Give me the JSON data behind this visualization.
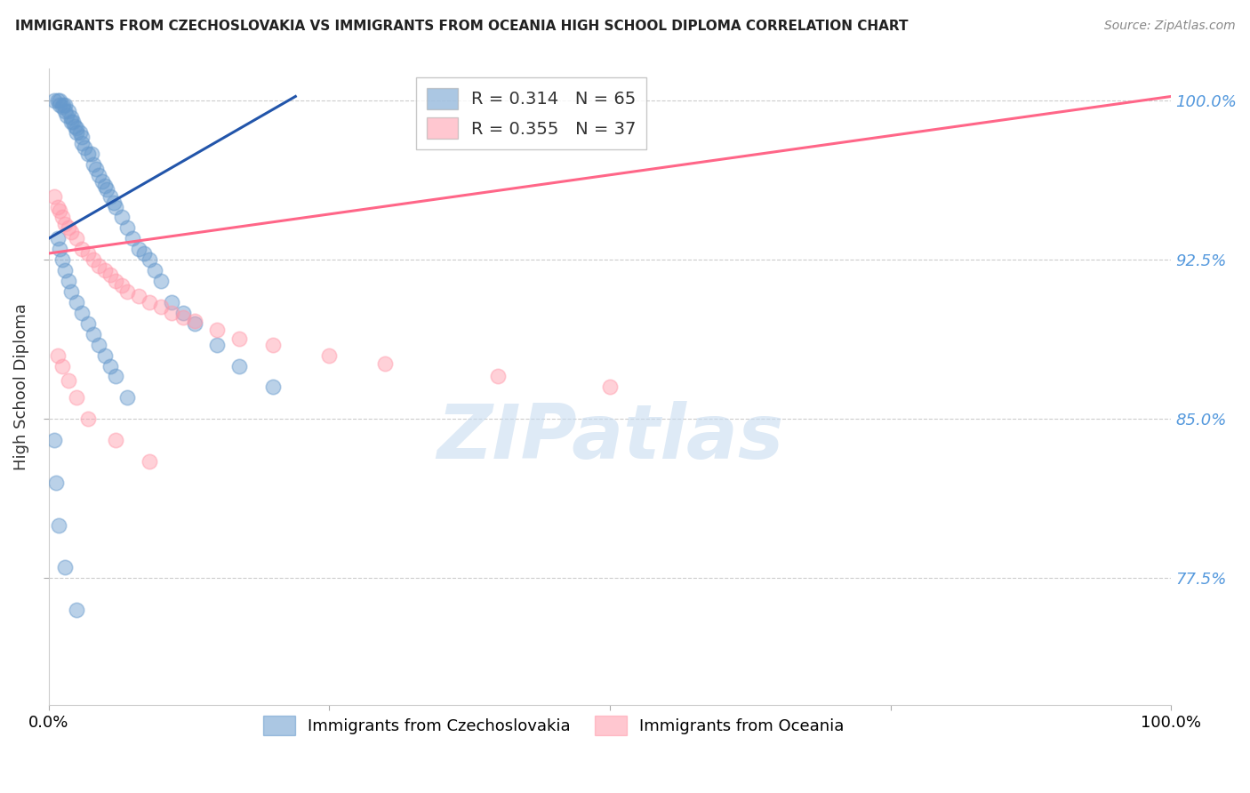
{
  "title": "IMMIGRANTS FROM CZECHOSLOVAKIA VS IMMIGRANTS FROM OCEANIA HIGH SCHOOL DIPLOMA CORRELATION CHART",
  "source": "Source: ZipAtlas.com",
  "ylabel": "High School Diploma",
  "xlim": [
    0.0,
    1.0
  ],
  "ylim": [
    0.715,
    1.015
  ],
  "yticks": [
    0.775,
    0.85,
    0.925,
    1.0
  ],
  "ytick_labels": [
    "77.5%",
    "85.0%",
    "92.5%",
    "100.0%"
  ],
  "xticks": [
    0.0,
    0.25,
    0.5,
    0.75,
    1.0
  ],
  "xtick_labels": [
    "0.0%",
    "",
    "",
    "",
    "100.0%"
  ],
  "legend_entry1": "R = 0.314   N = 65",
  "legend_entry2": "R = 0.355   N = 37",
  "blue_color": "#6699CC",
  "pink_color": "#FF99AA",
  "blue_line_color": "#2255AA",
  "pink_line_color": "#FF6688",
  "blue_x": [
    0.005,
    0.008,
    0.01,
    0.01,
    0.012,
    0.013,
    0.015,
    0.015,
    0.016,
    0.018,
    0.02,
    0.02,
    0.022,
    0.023,
    0.025,
    0.025,
    0.028,
    0.03,
    0.03,
    0.032,
    0.035,
    0.038,
    0.04,
    0.042,
    0.045,
    0.048,
    0.05,
    0.052,
    0.055,
    0.058,
    0.06,
    0.065,
    0.07,
    0.075,
    0.08,
    0.085,
    0.09,
    0.095,
    0.1,
    0.11,
    0.12,
    0.13,
    0.15,
    0.17,
    0.2,
    0.008,
    0.01,
    0.012,
    0.015,
    0.018,
    0.02,
    0.025,
    0.03,
    0.035,
    0.04,
    0.045,
    0.05,
    0.055,
    0.06,
    0.07,
    0.005,
    0.007,
    0.009,
    0.015,
    0.025
  ],
  "blue_y": [
    1.0,
    1.0,
    1.0,
    0.998,
    0.997,
    0.998,
    0.995,
    0.998,
    0.993,
    0.995,
    0.99,
    0.992,
    0.99,
    0.988,
    0.985,
    0.987,
    0.985,
    0.983,
    0.98,
    0.978,
    0.975,
    0.975,
    0.97,
    0.968,
    0.965,
    0.962,
    0.96,
    0.958,
    0.955,
    0.952,
    0.95,
    0.945,
    0.94,
    0.935,
    0.93,
    0.928,
    0.925,
    0.92,
    0.915,
    0.905,
    0.9,
    0.895,
    0.885,
    0.875,
    0.865,
    0.935,
    0.93,
    0.925,
    0.92,
    0.915,
    0.91,
    0.905,
    0.9,
    0.895,
    0.89,
    0.885,
    0.88,
    0.875,
    0.87,
    0.86,
    0.84,
    0.82,
    0.8,
    0.78,
    0.76
  ],
  "pink_x": [
    0.005,
    0.008,
    0.01,
    0.012,
    0.015,
    0.018,
    0.02,
    0.025,
    0.03,
    0.035,
    0.04,
    0.045,
    0.05,
    0.055,
    0.06,
    0.065,
    0.07,
    0.08,
    0.09,
    0.1,
    0.11,
    0.12,
    0.13,
    0.15,
    0.17,
    0.2,
    0.25,
    0.3,
    0.4,
    0.5,
    0.008,
    0.012,
    0.018,
    0.025,
    0.035,
    0.06,
    0.09
  ],
  "pink_y": [
    0.955,
    0.95,
    0.948,
    0.945,
    0.942,
    0.94,
    0.938,
    0.935,
    0.93,
    0.928,
    0.925,
    0.922,
    0.92,
    0.918,
    0.915,
    0.913,
    0.91,
    0.908,
    0.905,
    0.903,
    0.9,
    0.898,
    0.896,
    0.892,
    0.888,
    0.885,
    0.88,
    0.876,
    0.87,
    0.865,
    0.88,
    0.875,
    0.868,
    0.86,
    0.85,
    0.84,
    0.83
  ],
  "blue_line_x0": 0.0,
  "blue_line_y0": 0.935,
  "blue_line_x1": 0.22,
  "blue_line_y1": 1.002,
  "pink_line_x0": 0.0,
  "pink_line_y0": 0.928,
  "pink_line_x1": 1.0,
  "pink_line_y1": 1.002,
  "watermark": "ZIPatlas",
  "background_color": "#FFFFFF",
  "grid_color": "#CCCCCC",
  "bottom_legend1": "Immigrants from Czechoslovakia",
  "bottom_legend2": "Immigrants from Oceania"
}
